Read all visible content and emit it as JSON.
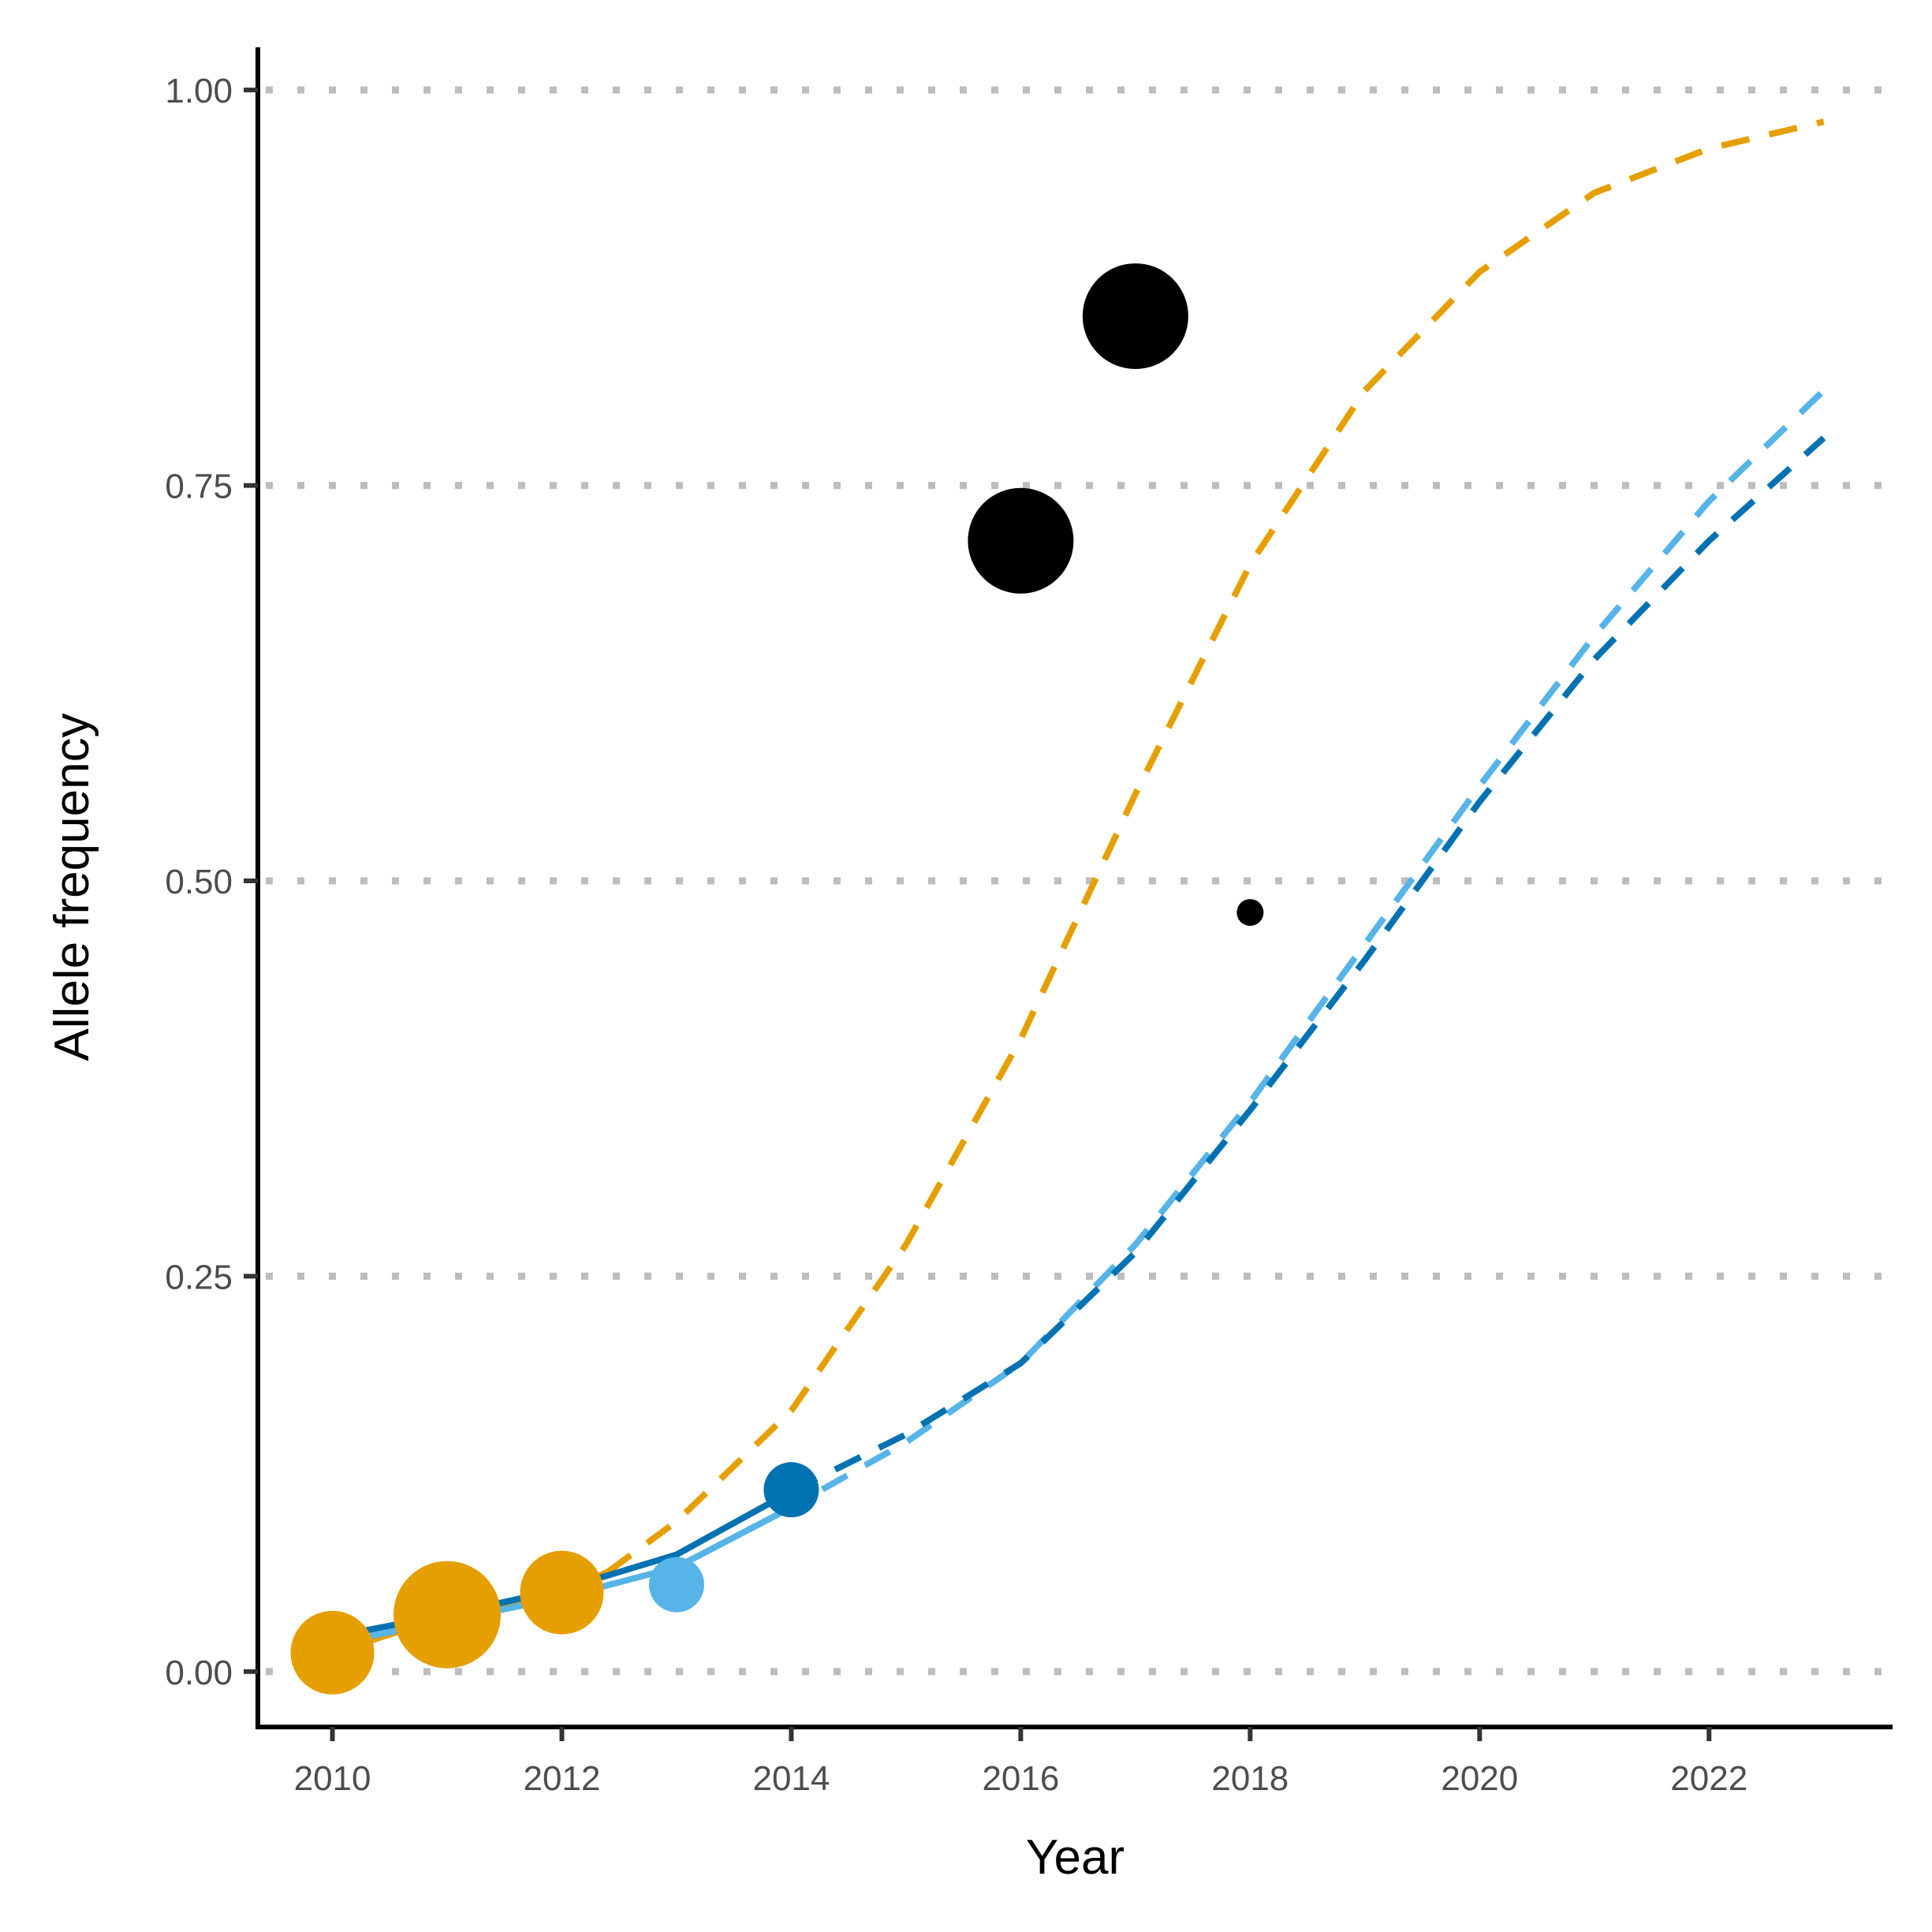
{
  "chart_data": {
    "type": "scatter",
    "title": "",
    "xlabel": "Year",
    "ylabel": "Allele frequency",
    "xlim": [
      2009.35,
      2023.6
    ],
    "ylim": [
      -0.035,
      1.027
    ],
    "x_ticks": [
      "2010",
      "2012",
      "2014",
      "2016",
      "2018",
      "2020",
      "2022"
    ],
    "y_ticks": [
      "0.00",
      "0.25",
      "0.50",
      "0.75",
      "1.00"
    ],
    "grid": "horizontal dotted",
    "legend": "none",
    "colors": {
      "orange": "#E69F00",
      "dark_blue": "#0072B2",
      "light_blue": "#56B4E9",
      "black": "#000000",
      "grid": "#bdbdbd"
    },
    "lines": [
      {
        "color": "orange",
        "style": "solid",
        "x": [
          2010,
          2011,
          2012,
          2012.4
        ],
        "y": [
          0.012,
          0.035,
          0.05,
          0.063
        ]
      },
      {
        "color": "orange",
        "style": "dashed",
        "x": [
          2012.4,
          2013,
          2014,
          2015,
          2016,
          2017,
          2018,
          2019,
          2020,
          2021,
          2022,
          2023
        ],
        "y": [
          0.063,
          0.095,
          0.165,
          0.27,
          0.4,
          0.555,
          0.7,
          0.81,
          0.885,
          0.935,
          0.963,
          0.98
        ]
      },
      {
        "color": "dark_blue",
        "style": "solid",
        "x": [
          2010,
          2011,
          2012,
          2013,
          2014
        ],
        "y": [
          0.022,
          0.036,
          0.052,
          0.074,
          0.114
        ]
      },
      {
        "color": "light_blue",
        "style": "solid",
        "x": [
          2010,
          2011,
          2012,
          2013,
          2013.9
        ],
        "y": [
          0.018,
          0.032,
          0.047,
          0.066,
          0.1
        ]
      },
      {
        "color": "light_blue",
        "style": "dashed",
        "x": [
          2013.9,
          2015,
          2016,
          2017,
          2018,
          2019,
          2020,
          2021,
          2022,
          2023
        ],
        "y": [
          0.1,
          0.145,
          0.195,
          0.27,
          0.36,
          0.46,
          0.56,
          0.655,
          0.74,
          0.81
        ]
      },
      {
        "color": "dark_blue",
        "style": "dashed",
        "x": [
          2014,
          2015,
          2016,
          2017,
          2018,
          2019,
          2020,
          2021,
          2022,
          2023
        ],
        "y": [
          0.114,
          0.15,
          0.195,
          0.265,
          0.355,
          0.45,
          0.55,
          0.64,
          0.715,
          0.78
        ]
      }
    ],
    "points": [
      {
        "x": 2010,
        "y": 0.012,
        "color": "orange",
        "size": "large"
      },
      {
        "x": 2011,
        "y": 0.036,
        "color": "orange",
        "size": "largest"
      },
      {
        "x": 2012,
        "y": 0.05,
        "color": "orange",
        "size": "large"
      },
      {
        "x": 2013,
        "y": 0.055,
        "color": "light_blue",
        "size": "medium"
      },
      {
        "x": 2014,
        "y": 0.115,
        "color": "dark_blue",
        "size": "medium"
      },
      {
        "x": 2016,
        "y": 0.715,
        "color": "black",
        "size": "larger"
      },
      {
        "x": 2017,
        "y": 0.857,
        "color": "black",
        "size": "larger"
      },
      {
        "x": 2018,
        "y": 0.48,
        "color": "black",
        "size": "small"
      }
    ]
  }
}
